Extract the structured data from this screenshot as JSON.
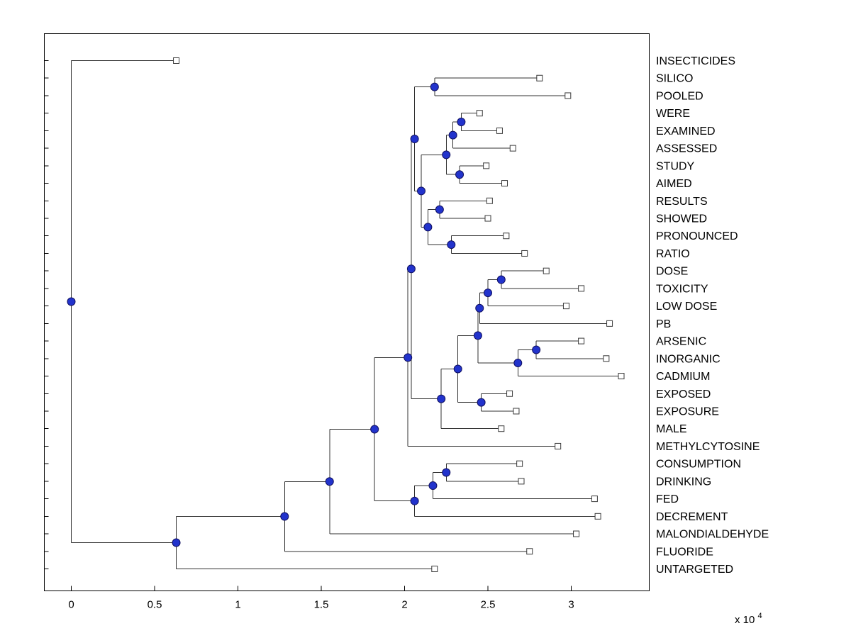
{
  "figure": {
    "background": "#ffffff",
    "plot_border_color": "#000000"
  },
  "chart_data": {
    "type": "dendrogram",
    "title": "",
    "orientation": "left-to-right",
    "n_leaves": 30,
    "unit_scale": 10000,
    "x_axis": {
      "ticks": [
        0,
        0.5,
        1,
        1.5,
        2,
        2.5,
        3
      ],
      "tick_labels": [
        "0",
        "0.5",
        "1",
        "1.5",
        "2",
        "2.5",
        "3"
      ],
      "multiplier_label": "x 10",
      "multiplier_exp": "4",
      "range": [
        -0.162,
        3.468
      ]
    },
    "leaf_labels": [
      "INSECTICIDES",
      "SILICO",
      "POOLED",
      "WERE",
      "EXAMINED",
      "ASSESSED",
      "STUDY",
      "AIMED",
      "RESULTS",
      "SHOWED",
      "PRONOUNCED",
      "RATIO",
      "DOSE",
      "TOXICITY",
      "LOW DOSE",
      "PB",
      "ARSENIC",
      "INORGANIC",
      "CADMIUM",
      "EXPOSED",
      "EXPOSURE",
      "MALE",
      "METHYLCYTOSINE",
      "CONSUMPTION",
      "DRINKING",
      "FED",
      "DECREMENT",
      "MALONDIALDEHYDE",
      "FLUORIDE",
      "UNTARGETED"
    ],
    "styles": {
      "line_color": "#303030",
      "node_fill": "#2233cc",
      "node_stroke": "#101060",
      "leaf_marker_fill": "#ffffff",
      "leaf_marker_stroke": "#3a3a3a",
      "label_color": "#000000"
    },
    "tree": {
      "x": 0,
      "children": [
        {
          "label": "INSECTICIDES",
          "x": 0.63
        },
        {
          "x": 0.63,
          "children": [
            {
              "x": 1.28,
              "children": [
                {
                  "x": 1.55,
                  "children": [
                    {
                      "x": 1.82,
                      "children": [
                        {
                          "x": 2.02,
                          "children": [
                            {
                              "x": 2.04,
                              "children": [
                                {
                                  "x": 2.06,
                                  "children": [
                                    {
                                      "x": 2.18,
                                      "children": [
                                        {
                                          "label": "SILICO",
                                          "x": 2.81
                                        },
                                        {
                                          "label": "POOLED",
                                          "x": 2.98
                                        }
                                      ]
                                    },
                                    {
                                      "x": 2.1,
                                      "children": [
                                        {
                                          "x": 2.25,
                                          "children": [
                                            {
                                              "x": 2.29,
                                              "children": [
                                                {
                                                  "x": 2.34,
                                                  "children": [
                                                    {
                                                      "label": "WERE",
                                                      "x": 2.45
                                                    },
                                                    {
                                                      "label": "EXAMINED",
                                                      "x": 2.57
                                                    }
                                                  ]
                                                },
                                                {
                                                  "label": "ASSESSED",
                                                  "x": 2.65
                                                }
                                              ]
                                            },
                                            {
                                              "x": 2.33,
                                              "children": [
                                                {
                                                  "label": "STUDY",
                                                  "x": 2.49
                                                },
                                                {
                                                  "label": "AIMED",
                                                  "x": 2.6
                                                }
                                              ]
                                            }
                                          ]
                                        },
                                        {
                                          "x": 2.14,
                                          "children": [
                                            {
                                              "x": 2.21,
                                              "children": [
                                                {
                                                  "label": "RESULTS",
                                                  "x": 2.51
                                                },
                                                {
                                                  "label": "SHOWED",
                                                  "x": 2.5
                                                }
                                              ]
                                            },
                                            {
                                              "x": 2.28,
                                              "children": [
                                                {
                                                  "label": "PRONOUNCED",
                                                  "x": 2.61
                                                },
                                                {
                                                  "label": "RATIO",
                                                  "x": 2.72
                                                }
                                              ]
                                            }
                                          ]
                                        }
                                      ]
                                    }
                                  ]
                                },
                                {
                                  "x": 2.22,
                                  "children": [
                                    {
                                      "x": 2.32,
                                      "children": [
                                        {
                                          "x": 2.44,
                                          "children": [
                                            {
                                              "x": 2.45,
                                              "children": [
                                                {
                                                  "x": 2.5,
                                                  "children": [
                                                    {
                                                      "x": 2.58,
                                                      "children": [
                                                        {
                                                          "label": "DOSE",
                                                          "x": 2.85
                                                        },
                                                        {
                                                          "label": "TOXICITY",
                                                          "x": 3.06
                                                        }
                                                      ]
                                                    },
                                                    {
                                                      "label": "LOW DOSE",
                                                      "x": 2.97
                                                    }
                                                  ]
                                                },
                                                {
                                                  "label": "PB",
                                                  "x": 3.23
                                                }
                                              ]
                                            },
                                            {
                                              "x": 2.68,
                                              "children": [
                                                {
                                                  "x": 2.79,
                                                  "children": [
                                                    {
                                                      "label": "ARSENIC",
                                                      "x": 3.06
                                                    },
                                                    {
                                                      "label": "INORGANIC",
                                                      "x": 3.21
                                                    }
                                                  ]
                                                },
                                                {
                                                  "label": "CADMIUM",
                                                  "x": 3.3
                                                }
                                              ]
                                            }
                                          ]
                                        },
                                        {
                                          "x": 2.46,
                                          "children": [
                                            {
                                              "label": "EXPOSED",
                                              "x": 2.63
                                            },
                                            {
                                              "label": "EXPOSURE",
                                              "x": 2.67
                                            }
                                          ]
                                        }
                                      ]
                                    },
                                    {
                                      "label": "MALE",
                                      "x": 2.58
                                    }
                                  ]
                                }
                              ]
                            },
                            {
                              "label": "METHYLCYTOSINE",
                              "x": 2.92
                            }
                          ]
                        },
                        {
                          "x": 2.06,
                          "children": [
                            {
                              "x": 2.17,
                              "children": [
                                {
                                  "x": 2.25,
                                  "children": [
                                    {
                                      "label": "CONSUMPTION",
                                      "x": 2.69
                                    },
                                    {
                                      "label": "DRINKING",
                                      "x": 2.7
                                    }
                                  ]
                                },
                                {
                                  "label": "FED",
                                  "x": 3.14
                                }
                              ]
                            },
                            {
                              "label": "DECREMENT",
                              "x": 3.16
                            }
                          ]
                        }
                      ]
                    },
                    {
                      "label": "MALONDIALDEHYDE",
                      "x": 3.03
                    }
                  ]
                },
                {
                  "label": "FLUORIDE",
                  "x": 2.75
                }
              ]
            },
            {
              "label": "UNTARGETED",
              "x": 2.18
            }
          ]
        }
      ]
    }
  }
}
